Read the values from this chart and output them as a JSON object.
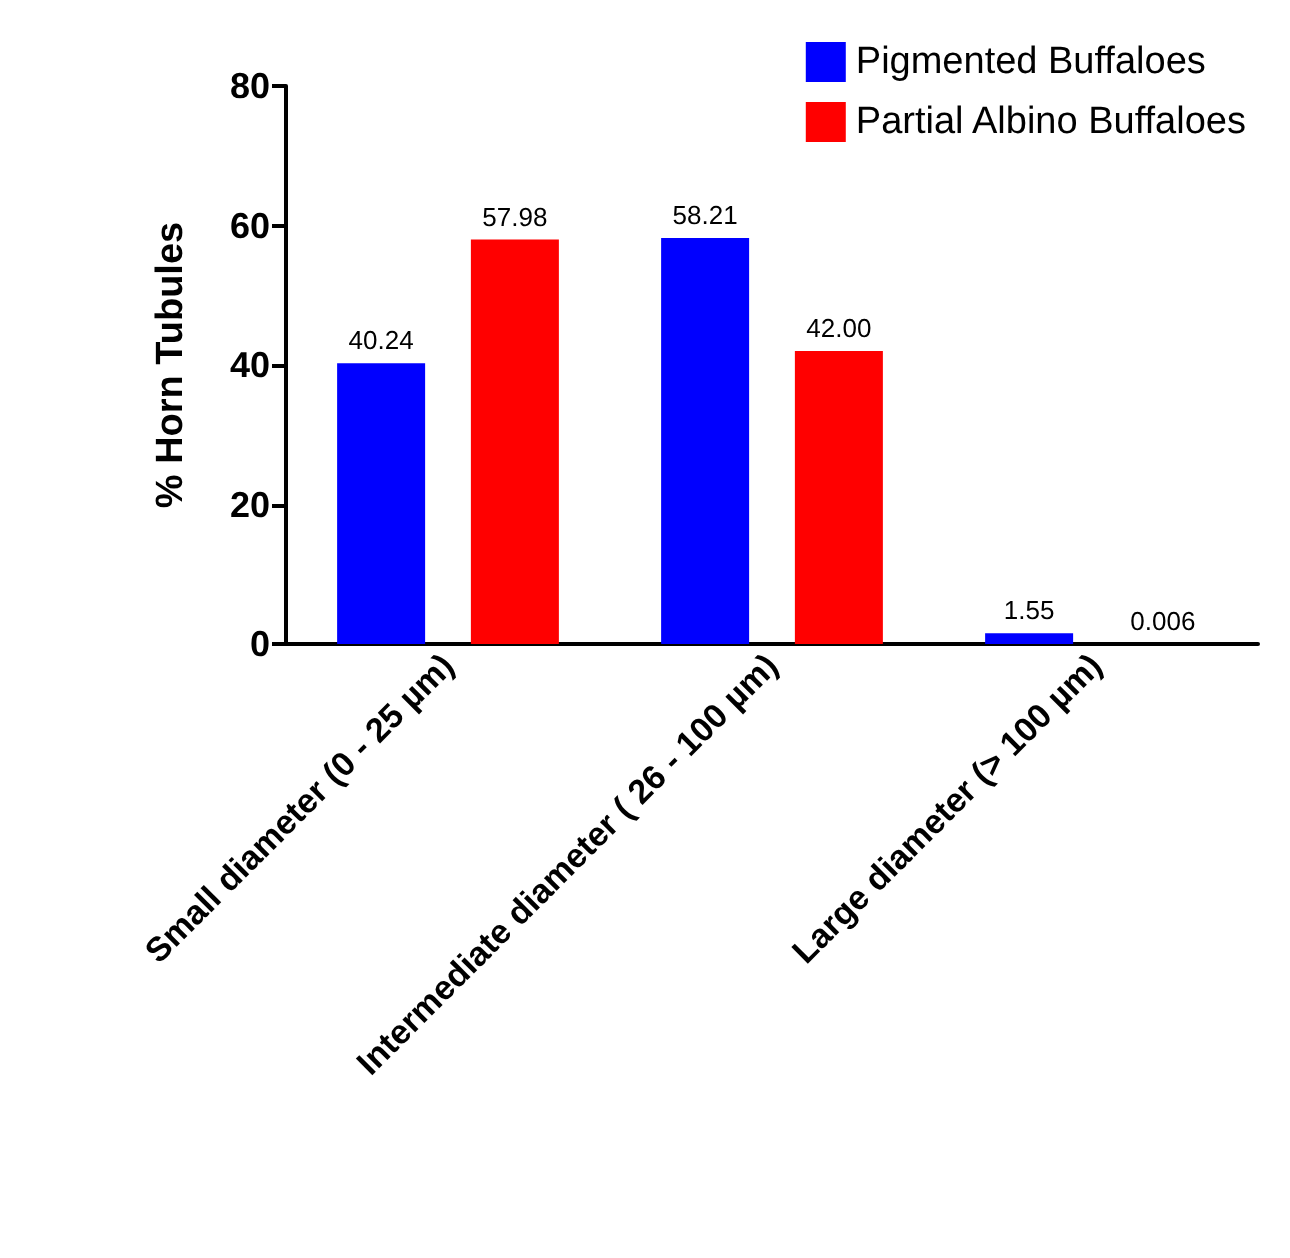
{
  "chart_data": {
    "type": "bar",
    "ylabel": "% Horn Tubules",
    "categories": [
      "Small diameter (0 - 25 µm)",
      "Intermediate diameter ( 26 - 100 µm)",
      "Large diameter (> 100 µm)"
    ],
    "series": [
      {
        "name": "Pigmented Buffaloes",
        "color": "#0000ff",
        "values": [
          40.24,
          58.21,
          1.55
        ],
        "value_labels": [
          "40.24",
          "58.21",
          "1.55"
        ]
      },
      {
        "name": "Partial Albino Buffaloes",
        "color": "#ff0000",
        "values": [
          57.98,
          42.0,
          0.006
        ],
        "value_labels": [
          "57.98",
          "42.00",
          "0.006"
        ]
      }
    ],
    "ylim": [
      0,
      80
    ],
    "yticks": [
      0,
      20,
      40,
      60,
      80
    ],
    "grid": false,
    "legend": "top right"
  }
}
